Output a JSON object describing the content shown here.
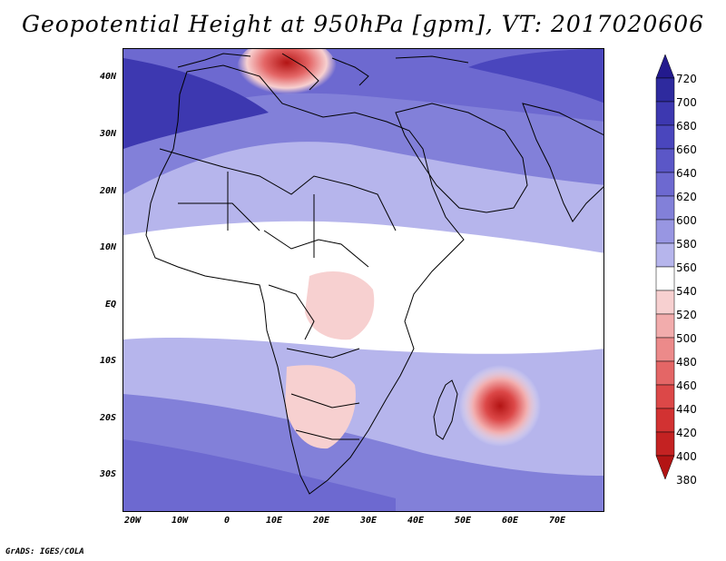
{
  "title": "Geopotential Height at 950hPa [gpm], VT: 2017020606",
  "credit": "GrADS: IGES/COLA",
  "map": {
    "variable": "Geopotential Height",
    "level": "950hPa",
    "units": "gpm",
    "valid_time": "2017020606",
    "lat_labels": [
      "40N",
      "30N",
      "20N",
      "10N",
      "EQ",
      "10S",
      "20S",
      "30S"
    ],
    "lon_labels": [
      "20W",
      "10W",
      "0",
      "10E",
      "20E",
      "30E",
      "40E",
      "50E",
      "60E",
      "70E"
    ]
  },
  "colorbar": {
    "labels": [
      "720",
      "700",
      "680",
      "660",
      "640",
      "620",
      "600",
      "580",
      "560",
      "540",
      "520",
      "500",
      "480",
      "460",
      "440",
      "420",
      "400",
      "380"
    ],
    "colors": [
      "#231a8e",
      "#2e2a9e",
      "#3d38b0",
      "#4a46bd",
      "#5b57c7",
      "#6d69d0",
      "#8280d9",
      "#9896e2",
      "#b6b5ec",
      "#ffffff",
      "#f7d0d0",
      "#f2acac",
      "#ec8a8a",
      "#e46666",
      "#dc4848",
      "#d23232",
      "#c42222",
      "#b31414"
    ]
  }
}
